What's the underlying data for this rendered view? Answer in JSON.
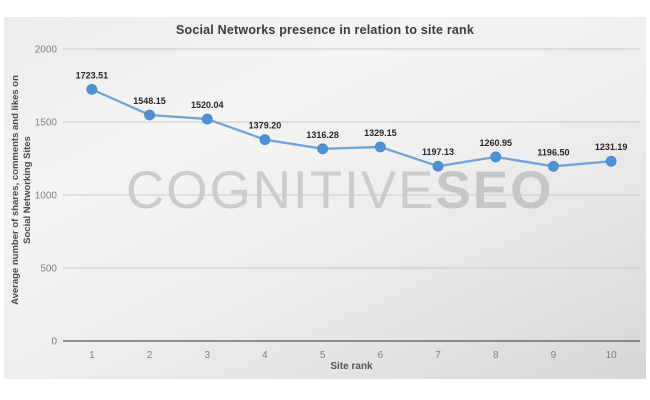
{
  "chart": {
    "title": "Social Networks presence in relation to site rank",
    "x_axis_title": "Site rank"
  },
  "watermark": {
    "light": "COGNITIVE",
    "bold": "SEO"
  },
  "chart_data": {
    "type": "line",
    "title": "Social Networks presence in relation to site rank",
    "xlabel": "Site rank",
    "ylabel": "Average number of shares, comments and likes on Social Networking Sites",
    "ylabel_lines": [
      "Average number of shares, comments and likes on",
      "Social Networking Sites"
    ],
    "categories": [
      "1",
      "2",
      "3",
      "4",
      "5",
      "6",
      "7",
      "8",
      "9",
      "10"
    ],
    "values": [
      1723.51,
      1548.15,
      1520.04,
      1379.2,
      1316.28,
      1329.15,
      1197.13,
      1260.95,
      1196.5,
      1231.19
    ],
    "data_labels": [
      "1723.51",
      "1548.15",
      "1520.04",
      "1379.20",
      "1316.28",
      "1329.15",
      "1197.13",
      "1260.95",
      "1196.50",
      "1231.19"
    ],
    "ylim": [
      0,
      2000
    ],
    "yticks": [
      0,
      500,
      1000,
      1500,
      2000
    ],
    "ytick_labels": [
      "0",
      "500",
      "1000",
      "1500",
      "2000"
    ],
    "grid": true,
    "legend": false,
    "line_color": "#71a3d9",
    "marker_color": "#4e91d5",
    "marker_edge_color": "#4488cd",
    "gridline_color": "#c9c9c9",
    "axis_line_color": "#595959",
    "tick_label_color": "#7f7f7f",
    "data_label_color": "#262626"
  }
}
